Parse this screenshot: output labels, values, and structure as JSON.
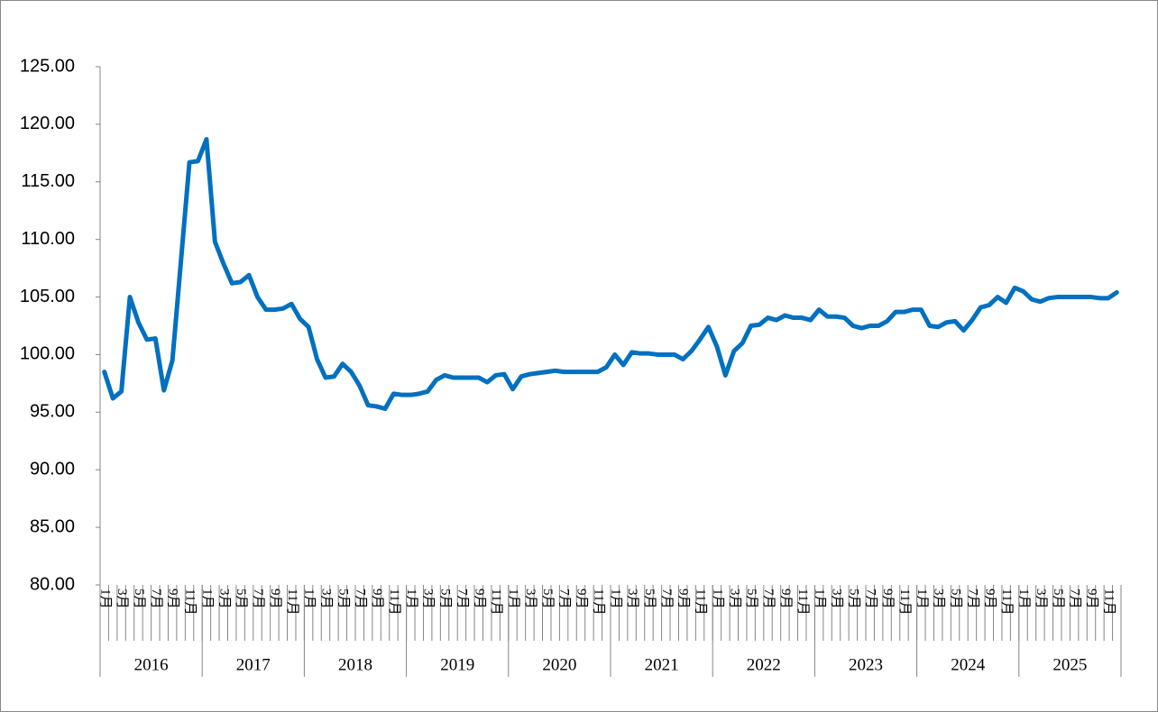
{
  "chart_data": {
    "type": "line",
    "categories": [
      "1月",
      null,
      "3月",
      null,
      "5月",
      null,
      "7月",
      null,
      "9月",
      null,
      "11月",
      null,
      "1月",
      null,
      "3月",
      null,
      "5月",
      null,
      "7月",
      null,
      "9月",
      null,
      "11月",
      null,
      "1月",
      null,
      "3月",
      null,
      "5月",
      null,
      "7月",
      null,
      "9月",
      null,
      "11月",
      null,
      "1月",
      null,
      "3月",
      null,
      "5月",
      null,
      "7月",
      null,
      "9月",
      null,
      "11月",
      null,
      "1月",
      null,
      "3月",
      null,
      "5月",
      null,
      "7月",
      null,
      "9月",
      null,
      "11月",
      null,
      "1月",
      null,
      "3月",
      null,
      "5月",
      null,
      "7月",
      null,
      "9月",
      null,
      "11月",
      null,
      "1月",
      null,
      "3月",
      null,
      "5月",
      null,
      "7月",
      null,
      "9月",
      null,
      "11月",
      null,
      "1月",
      null,
      "3月",
      null,
      "5月",
      null,
      "7月",
      null,
      "9月",
      null,
      "11月",
      null,
      "1月",
      null,
      "3月",
      null,
      "5月",
      null,
      "7月",
      null,
      "9月",
      null,
      "11月",
      null,
      "1月",
      null,
      "3月",
      null,
      "5月",
      null,
      "7月",
      null,
      "9月",
      null,
      "11月",
      null
    ],
    "years": [
      "2016",
      "2017",
      "2018",
      "2019",
      "2020",
      "2021",
      "2022",
      "2023",
      "2024",
      "2025"
    ],
    "values": [
      98.5,
      96.2,
      96.8,
      105.0,
      102.8,
      101.3,
      101.4,
      96.9,
      99.5,
      108.1,
      116.7,
      116.8,
      118.7,
      109.8,
      107.9,
      106.2,
      106.3,
      106.9,
      105.0,
      103.9,
      103.9,
      104.0,
      104.4,
      103.1,
      102.4,
      99.6,
      98.0,
      98.1,
      99.2,
      98.5,
      97.3,
      95.6,
      95.5,
      95.3,
      96.6,
      96.5,
      96.5,
      96.6,
      96.8,
      97.8,
      98.2,
      98.0,
      98.0,
      98.0,
      98.0,
      97.6,
      98.2,
      98.3,
      97.0,
      98.1,
      98.3,
      98.4,
      98.5,
      98.6,
      98.5,
      98.5,
      98.5,
      98.5,
      98.5,
      98.9,
      100.0,
      99.1,
      100.2,
      100.1,
      100.1,
      100.0,
      100.0,
      100.0,
      99.6,
      100.3,
      101.3,
      102.4,
      100.7,
      98.2,
      100.3,
      101.0,
      102.5,
      102.6,
      103.2,
      103.0,
      103.4,
      103.2,
      103.2,
      103.0,
      103.9,
      103.3,
      103.3,
      103.2,
      102.5,
      102.3,
      102.5,
      102.5,
      102.9,
      103.7,
      103.7,
      103.9,
      103.9,
      102.5,
      102.4,
      102.8,
      102.9,
      102.1,
      103.0,
      104.1,
      104.3,
      105.0,
      104.5,
      105.8,
      105.5,
      104.8,
      104.6,
      104.9,
      105.0,
      105.0,
      105.0,
      105.0,
      105.0,
      104.9,
      104.9,
      105.4
    ],
    "color": "#0070c0",
    "ylim": [
      80,
      125
    ],
    "yticks": [
      {
        "value": 80,
        "label": "80.00"
      },
      {
        "value": 85,
        "label": "85.00"
      },
      {
        "value": 90,
        "label": "90.00"
      },
      {
        "value": 95,
        "label": "95.00"
      },
      {
        "value": 100,
        "label": "100.00"
      },
      {
        "value": 105,
        "label": "105.00"
      },
      {
        "value": 110,
        "label": "110.00"
      },
      {
        "value": 115,
        "label": "115.00"
      },
      {
        "value": 120,
        "label": "120.00"
      },
      {
        "value": 125,
        "label": "125.00"
      }
    ],
    "grid": false
  }
}
